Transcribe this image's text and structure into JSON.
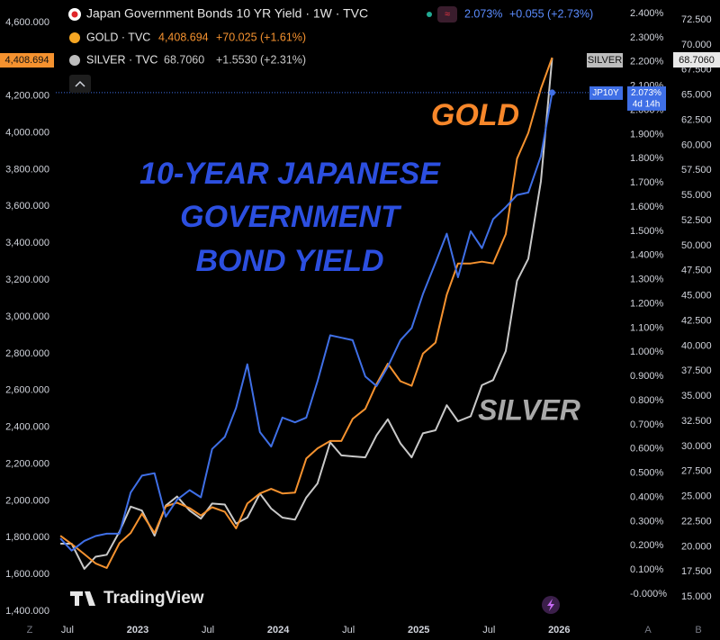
{
  "chart_data": {
    "type": "line",
    "x": [
      2022.45,
      2022.53,
      2022.62,
      2022.7,
      2022.78,
      2022.87,
      2022.95,
      2023.03,
      2023.12,
      2023.2,
      2023.28,
      2023.37,
      2023.45,
      2023.53,
      2023.62,
      2023.7,
      2023.78,
      2023.87,
      2023.95,
      2024.03,
      2024.12,
      2024.2,
      2024.28,
      2024.37,
      2024.45,
      2024.53,
      2024.62,
      2024.7,
      2024.78,
      2024.87,
      2024.95,
      2025.03,
      2025.12,
      2025.2,
      2025.28,
      2025.37,
      2025.45,
      2025.53,
      2025.62,
      2025.7,
      2025.78,
      2025.87,
      2025.95
    ],
    "xlim": [
      2022.02,
      2026.44
    ],
    "xticks": [
      {
        "value": 2022.5,
        "label": "Jul"
      },
      2023,
      {
        "value": 2023.5,
        "label": "Jul"
      },
      2024,
      {
        "value": 2024.5,
        "label": "Jul"
      },
      2025,
      {
        "value": 2025.5,
        "label": "Jul"
      },
      2026
    ],
    "ylim": [
      1356,
      4722
    ],
    "yticks": [
      {
        "value": 1400,
        "label": "1,400.000"
      },
      {
        "value": 1600,
        "label": "1,600.000"
      },
      {
        "value": 1800,
        "label": "1,800.000"
      },
      {
        "value": 2000,
        "label": "2,000.000"
      },
      {
        "value": 2200,
        "label": "2,200.000"
      },
      {
        "value": 2400,
        "label": "2,400.000"
      },
      {
        "value": 2600,
        "label": "2,600.000"
      },
      {
        "value": 2800,
        "label": "2,800.000"
      },
      {
        "value": 3000,
        "label": "3,000.000"
      },
      {
        "value": 3200,
        "label": "3,200.000"
      },
      {
        "value": 3400,
        "label": "3,400.000"
      },
      {
        "value": 3600,
        "label": "3,600.000"
      },
      {
        "value": 3800,
        "label": "3,800.000"
      },
      {
        "value": 4000,
        "label": "4,000.000"
      },
      {
        "value": 4200,
        "label": "4,200.000"
      },
      {
        "value": 4400,
        "label": "4,400.000"
      },
      {
        "value": 4600,
        "label": "4,600.000"
      }
    ],
    "y2lim": [
      -0.104,
      2.456
    ],
    "y2ticks": [
      {
        "value": 0,
        "label": "-0.000%"
      },
      {
        "value": 0.1,
        "label": "0.100%"
      },
      {
        "value": 0.2,
        "label": "0.200%"
      },
      {
        "value": 0.3,
        "label": "0.300%"
      },
      {
        "value": 0.4,
        "label": "0.400%"
      },
      {
        "value": 0.5,
        "label": "0.500%"
      },
      {
        "value": 0.6,
        "label": "0.600%"
      },
      {
        "value": 0.7,
        "label": "0.700%"
      },
      {
        "value": 0.8,
        "label": "0.800%"
      },
      {
        "value": 0.9,
        "label": "0.900%"
      },
      {
        "value": 1.0,
        "label": "1.000%"
      },
      {
        "value": 1.1,
        "label": "1.100%"
      },
      {
        "value": 1.2,
        "label": "1.200%"
      },
      {
        "value": 1.3,
        "label": "1.300%"
      },
      {
        "value": 1.4,
        "label": "1.400%"
      },
      {
        "value": 1.5,
        "label": "1.500%"
      },
      {
        "value": 1.6,
        "label": "1.600%"
      },
      {
        "value": 1.7,
        "label": "1.700%"
      },
      {
        "value": 1.8,
        "label": "1.800%"
      },
      {
        "value": 1.9,
        "label": "1.900%"
      },
      {
        "value": 2.0,
        "label": "2.000%"
      },
      {
        "value": 2.1,
        "label": "2.100%"
      },
      {
        "value": 2.2,
        "label": "2.200%"
      },
      {
        "value": 2.3,
        "label": "2.300%"
      },
      {
        "value": 2.4,
        "label": "2.400%"
      }
    ],
    "y3lim": [
      12.77,
      74.47
    ],
    "y3ticks": [
      {
        "value": 15,
        "label": "15.000"
      },
      {
        "value": 17.5,
        "label": "17.500"
      },
      {
        "value": 20,
        "label": "20.000"
      },
      {
        "value": 22.5,
        "label": "22.500"
      },
      {
        "value": 25,
        "label": "25.000"
      },
      {
        "value": 27.5,
        "label": "27.500"
      },
      {
        "value": 30,
        "label": "30.000"
      },
      {
        "value": 32.5,
        "label": "32.500"
      },
      {
        "value": 35,
        "label": "35.000"
      },
      {
        "value": 37.5,
        "label": "37.500"
      },
      {
        "value": 40,
        "label": "40.000"
      },
      {
        "value": 42.5,
        "label": "42.500"
      },
      {
        "value": 45,
        "label": "45.000"
      },
      {
        "value": 47.5,
        "label": "47.500"
      },
      {
        "value": 50,
        "label": "50.000"
      },
      {
        "value": 52.5,
        "label": "52.500"
      },
      {
        "value": 55,
        "label": "55.000"
      },
      {
        "value": 57.5,
        "label": "57.500"
      },
      {
        "value": 60,
        "label": "60.000"
      },
      {
        "value": 62.5,
        "label": "62.500"
      },
      {
        "value": 65,
        "label": "65.000"
      },
      {
        "value": 67.5,
        "label": "67.500"
      },
      {
        "value": 70,
        "label": "70.000"
      },
      {
        "value": 72.5,
        "label": "72.500"
      }
    ],
    "series": [
      {
        "name": "Japan Government Bonds 10 YR Yield · 1W · TVC",
        "axis": "y2",
        "color": "#3f6fe6",
        "last_label": "2.073%",
        "change_label": "+0.055 (+2.73%)",
        "values": [
          0.23,
          0.18,
          0.22,
          0.24,
          0.25,
          0.25,
          0.42,
          0.49,
          0.5,
          0.32,
          0.39,
          0.43,
          0.4,
          0.6,
          0.65,
          0.77,
          0.95,
          0.67,
          0.61,
          0.73,
          0.71,
          0.73,
          0.88,
          1.07,
          1.06,
          1.05,
          0.9,
          0.86,
          0.94,
          1.05,
          1.1,
          1.24,
          1.37,
          1.49,
          1.31,
          1.5,
          1.43,
          1.55,
          1.6,
          1.65,
          1.66,
          1.81,
          2.073
        ]
      },
      {
        "name": "GOLD · TVC",
        "axis": "y",
        "color": "#f5922f",
        "last_label": "4,408.694",
        "change_label": "+70.025 (+1.61%)",
        "values": [
          1810,
          1765,
          1710,
          1660,
          1635,
          1770,
          1825,
          1930,
          1825,
          1970,
          1990,
          1960,
          1920,
          1965,
          1940,
          1850,
          1985,
          2040,
          2065,
          2040,
          2045,
          2230,
          2285,
          2325,
          2325,
          2445,
          2500,
          2635,
          2745,
          2650,
          2625,
          2800,
          2860,
          3120,
          3290,
          3290,
          3300,
          3290,
          3450,
          3860,
          4000,
          4240,
          4408.694
        ]
      },
      {
        "name": "SILVER · TVC",
        "axis": "y3",
        "color": "#c9c9c9",
        "last_label": "68.7060",
        "change_label": "+1.5530 (+2.31%)",
        "values": [
          20.3,
          20.3,
          17.8,
          19.0,
          19.2,
          21.5,
          24.0,
          23.6,
          21.1,
          24.1,
          25.0,
          23.6,
          22.8,
          24.3,
          24.2,
          22.3,
          22.9,
          25.3,
          23.8,
          22.9,
          22.7,
          24.9,
          26.3,
          30.4,
          29.1,
          29.0,
          28.9,
          31.1,
          32.7,
          30.3,
          28.9,
          31.3,
          31.6,
          34.1,
          32.5,
          33.0,
          36.1,
          36.6,
          39.5,
          46.5,
          48.7,
          56.4,
          68.706
        ]
      }
    ],
    "tags": {
      "silver": "SILVER",
      "yield": "JP10Y",
      "countdown": "4d 14h"
    },
    "annotations": [
      {
        "text": "GOLD",
        "color": "#f7872a"
      },
      {
        "text": "10-YEAR JAPANESE",
        "color": "#2c4fe0"
      },
      {
        "text": "GOVERNMENT",
        "color": "#2c4fe0"
      },
      {
        "text": "BOND YIELD",
        "color": "#2c4fe0"
      },
      {
        "text": "SILVER",
        "color": "#a9a9a9"
      }
    ],
    "watermark": "TradingView",
    "corner_buttons": [
      "Z",
      "A",
      "B"
    ]
  }
}
